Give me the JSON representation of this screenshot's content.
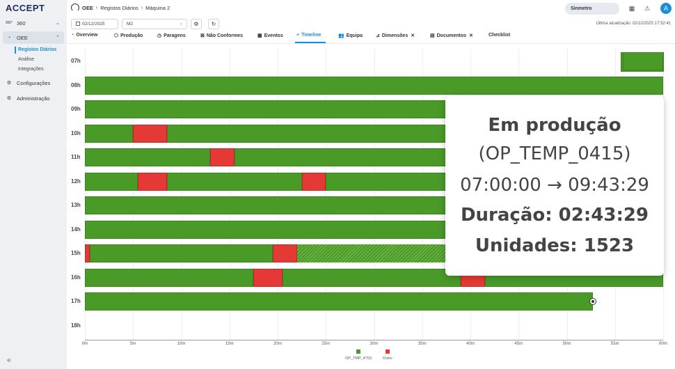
{
  "app": {
    "logo": "ACCEPT"
  },
  "sidebar": {
    "items": [
      {
        "icon": "360-icon",
        "label": "360",
        "expanded": false
      },
      {
        "icon": "gauge-icon",
        "label": "OEE",
        "expanded": true
      },
      {
        "icon": "gear-icon",
        "label": "Configurações"
      },
      {
        "icon": "admin-icon",
        "label": "Administração"
      }
    ],
    "oee_subitems": [
      {
        "label": "Registos Diários",
        "active": true
      },
      {
        "label": "Análise",
        "active": false
      },
      {
        "label": "Integrações",
        "active": false
      }
    ],
    "collapse_glyph": "«"
  },
  "breadcrumb": [
    "OEE",
    "Registos Diários",
    "Máquina 2"
  ],
  "header": {
    "tenant": "Sinmetro",
    "avatar_letter": "A",
    "last_update": "Última atualização: 02/12/2025 17:52:41"
  },
  "filters": {
    "date": "02/12/2025",
    "machine": "M2"
  },
  "tabs": [
    {
      "label": "Overview",
      "icon": "gauge-icon",
      "active": false
    },
    {
      "label": "Produção",
      "icon": "box-icon",
      "active": false
    },
    {
      "label": "Paragens",
      "icon": "timer-icon",
      "active": false
    },
    {
      "label": "Não Conformes",
      "icon": "x-square-icon",
      "active": false
    },
    {
      "label": "Eventos",
      "icon": "calendar-icon",
      "active": false
    },
    {
      "label": "Timeline",
      "icon": "timeline-icon",
      "active": true
    },
    {
      "label": "Equipa",
      "icon": "team-icon",
      "active": false
    },
    {
      "label": "Dimensões",
      "icon": "ruler-icon",
      "active": false,
      "closable": true
    },
    {
      "label": "Documentos",
      "icon": "document-icon",
      "active": false,
      "closable": true
    },
    {
      "label": "Checklist",
      "icon": "",
      "active": false
    }
  ],
  "timeline": {
    "hours": [
      "07h",
      "08h",
      "09h",
      "10h",
      "11h",
      "12h",
      "13h",
      "14h",
      "15h",
      "16h",
      "17h",
      "18h"
    ],
    "x_ticks": [
      "0m",
      "5m",
      "10m",
      "15m",
      "20m",
      "25m",
      "30m",
      "35m",
      "40m",
      "45m",
      "50m",
      "55m",
      "60m"
    ],
    "op_chip_label": "OP_TMP_4703",
    "rows": [
      {
        "hour": "07h",
        "segments": [
          {
            "state": "production",
            "start": 55.8,
            "end": 60
          }
        ]
      },
      {
        "hour": "08h",
        "segments": [
          {
            "state": "production",
            "start": 0,
            "end": 60
          }
        ]
      },
      {
        "hour": "09h",
        "segments": [
          {
            "state": "production",
            "start": 0,
            "end": 60
          }
        ]
      },
      {
        "hour": "10h",
        "segments": [
          {
            "state": "production",
            "start": 0,
            "end": 5
          },
          {
            "state": "other",
            "start": 5,
            "end": 8.5
          },
          {
            "state": "production",
            "start": 8.5,
            "end": 60
          }
        ]
      },
      {
        "hour": "11h",
        "segments": [
          {
            "state": "production",
            "start": 0,
            "end": 13
          },
          {
            "state": "other",
            "start": 13,
            "end": 15.5
          },
          {
            "state": "production",
            "start": 15.5,
            "end": 60
          }
        ]
      },
      {
        "hour": "12h",
        "segments": [
          {
            "state": "production",
            "start": 0,
            "end": 5.5
          },
          {
            "state": "other",
            "start": 5.5,
            "end": 8.5
          },
          {
            "state": "production",
            "start": 8.5,
            "end": 22.5
          },
          {
            "state": "other",
            "start": 22.5,
            "end": 25
          },
          {
            "state": "production",
            "start": 25,
            "end": 60
          }
        ]
      },
      {
        "hour": "13h",
        "segments": [
          {
            "state": "production",
            "start": 0,
            "end": 60
          }
        ]
      },
      {
        "hour": "14h",
        "segments": [
          {
            "state": "production",
            "start": 0,
            "end": 60
          }
        ]
      },
      {
        "hour": "15h",
        "segments": [
          {
            "state": "other",
            "start": 0,
            "end": 0.5
          },
          {
            "state": "production",
            "start": 0.5,
            "end": 19.5
          },
          {
            "state": "other",
            "start": 19.5,
            "end": 22
          },
          {
            "state": "hatched",
            "start": 22,
            "end": 60
          }
        ]
      },
      {
        "hour": "16h",
        "segments": [
          {
            "state": "production",
            "start": 0,
            "end": 17.5
          },
          {
            "state": "other",
            "start": 17.5,
            "end": 20.5
          },
          {
            "state": "production",
            "start": 20.5,
            "end": 39
          },
          {
            "state": "other",
            "start": 39,
            "end": 41.5
          },
          {
            "state": "production",
            "start": 41.5,
            "end": 60
          }
        ]
      },
      {
        "hour": "17h",
        "segments": [
          {
            "state": "production",
            "start": 0,
            "end": 52.7
          }
        ],
        "marker_at": 52.7
      },
      {
        "hour": "18h",
        "segments": []
      }
    ],
    "legend": [
      {
        "label": "OP_TMP_4703",
        "color": "#4a9a28"
      },
      {
        "label": "Outro",
        "color": "#e53935"
      }
    ]
  },
  "tooltip": {
    "state": "Em produção",
    "order": "(OP_TEMP_0415)",
    "range": "07:00:00 → 09:43:29",
    "duration": "Duração: 02:43:29",
    "units": "Unidades: 1523"
  },
  "colors": {
    "production": "#4a9a28",
    "other": "#e53935",
    "accent": "#1a8fd8"
  }
}
